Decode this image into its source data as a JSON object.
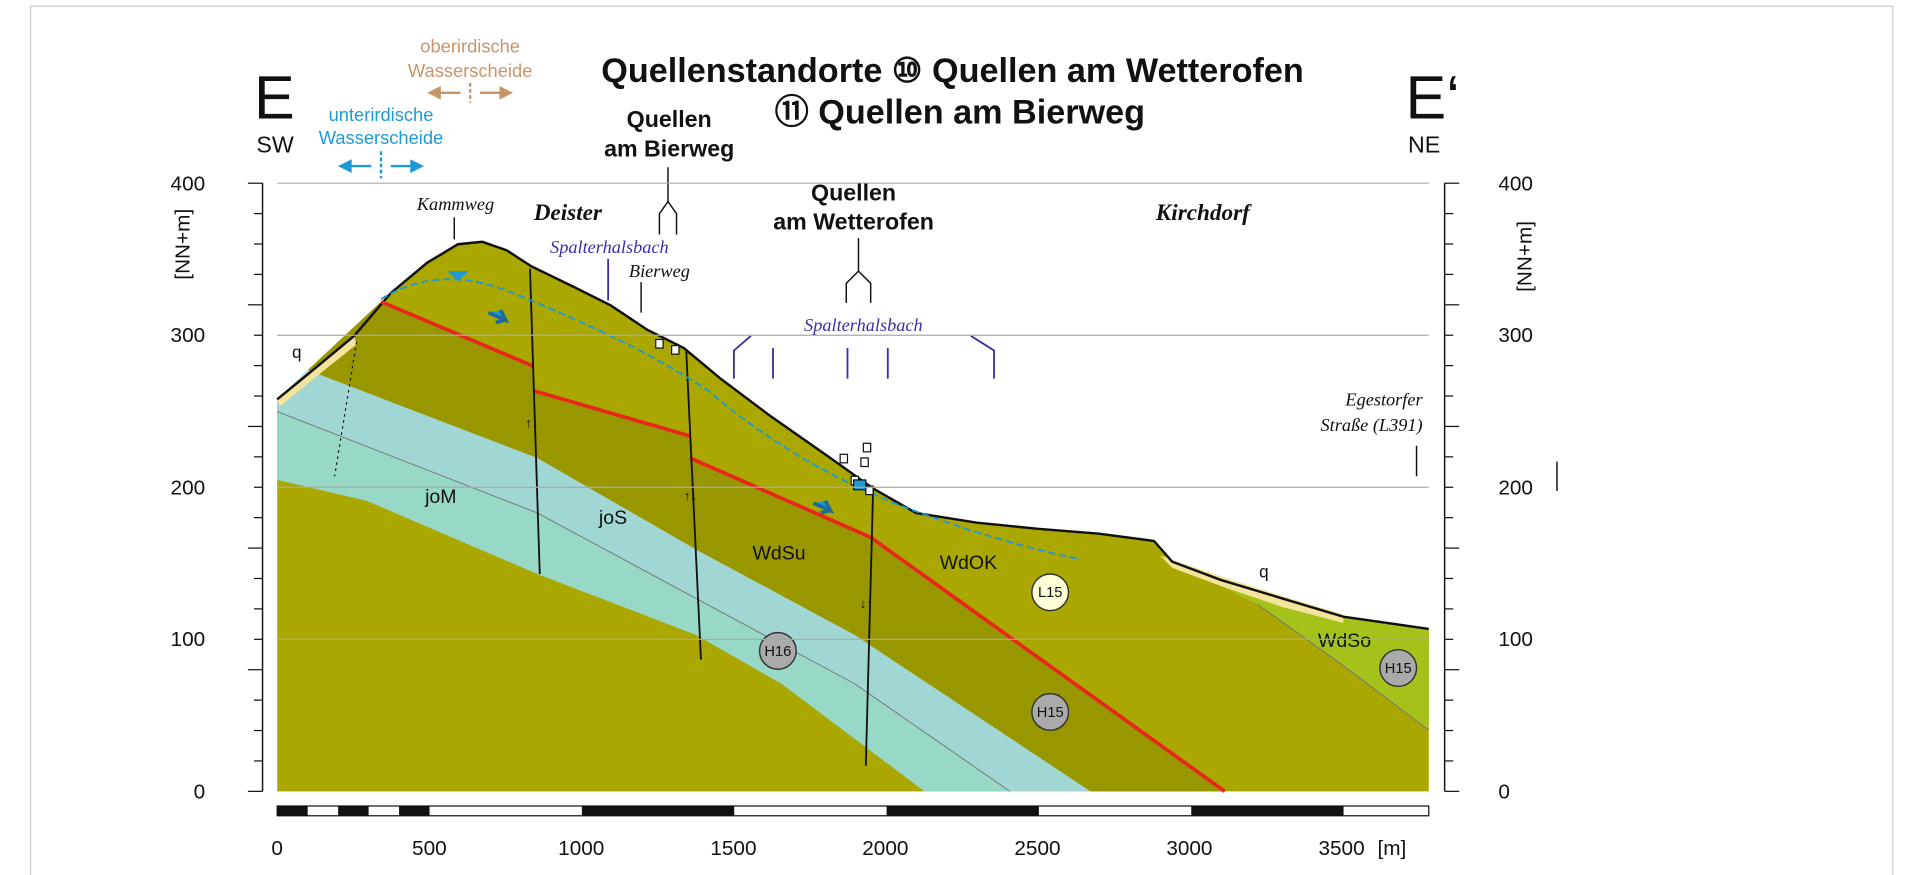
{
  "title": {
    "line1": "Quellenstandorte ⑩ Quellen am Wetterofen",
    "line2": "⑪ Quellen am Bierweg"
  },
  "section_start": {
    "letter": "E",
    "direction": "SW"
  },
  "section_end": {
    "letter": "E‘",
    "direction": "NE"
  },
  "surface_divide": [
    "oberirdische",
    "Wasserscheide"
  ],
  "underground_divide": [
    "unterirdische",
    "Wasserscheide"
  ],
  "springs_bierweg": [
    "Quellen",
    "am Bierweg"
  ],
  "springs_wetterofen": [
    "Quellen",
    "am Wetterofen"
  ],
  "places": {
    "kammweg": "Kammweg",
    "deister": "Deister",
    "spalterhalsbach": "Spalterhalsbach",
    "bierweg": "Bierweg",
    "kirchdorf": "Kirchdorf",
    "road": [
      "Egestorfer",
      "Straße (L391)"
    ]
  },
  "quaternary": "q",
  "formations": [
    "joM",
    "joS",
    "WdSu",
    "WdOK",
    "WdSo"
  ],
  "wells": [
    "L15",
    "H16",
    "H15"
  ],
  "y_axis": {
    "label": "[NN+m]",
    "ticks": [
      0,
      100,
      200,
      300,
      400
    ]
  },
  "x_axis": {
    "unit": "[m]",
    "ticks": [
      0,
      500,
      1000,
      1500,
      2000,
      2500,
      3000,
      3500
    ]
  }
}
